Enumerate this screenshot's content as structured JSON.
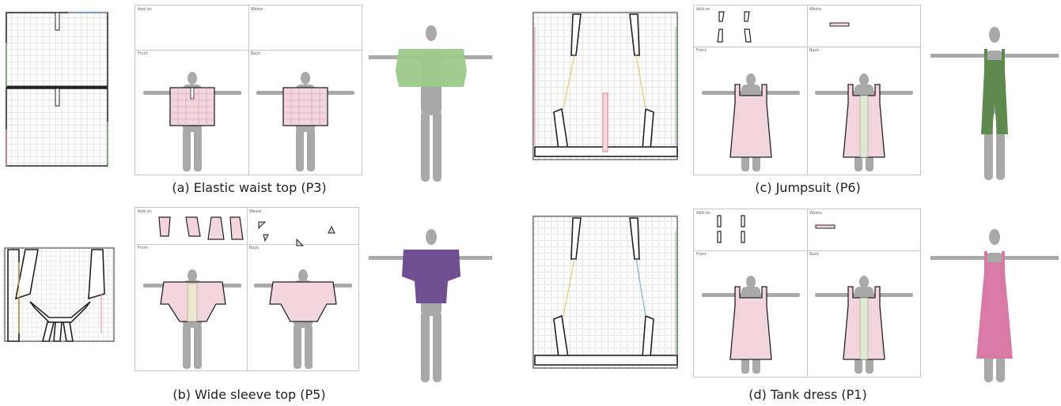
{
  "captions": {
    "a": "(a) Elastic waist top (P3)",
    "b": "(b) Wide sleeve top (P5)",
    "c": "(c) Jumpsuit (P6)",
    "d": "(d) Tank dress (P1)"
  },
  "panel_labels": {
    "add_on": "Add-on",
    "waste": "Waste",
    "front": "Front",
    "back": "Back"
  },
  "colors": {
    "elastic_top": "#9cc98a",
    "wide_sleeve": "#6f4f8f",
    "jumpsuit": "#5e8a4f",
    "tank_dress": "#d77aa5",
    "avatar": "#a9a9a9"
  }
}
